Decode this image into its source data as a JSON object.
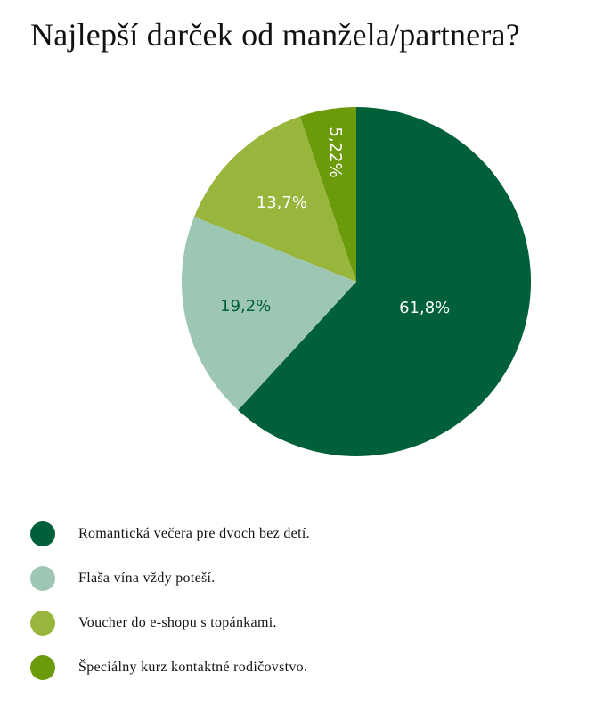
{
  "chart_data": {
    "type": "pie",
    "title": "Najlepší darček od manžela/partnera?",
    "categories": [
      "Romantická večera pre dvoch bez detí.",
      "Flaša vína vždy poteší.",
      "Voucher do e-shopu s topánkami.",
      "Špeciálny kurz kontaktné rodičovstvo."
    ],
    "values": [
      61.8,
      19.2,
      13.7,
      5.22
    ],
    "labels": [
      "61,8%",
      "19,2%",
      "13,7%",
      "5,22%"
    ],
    "colors": [
      "#00603a",
      "#9dc6b3",
      "#98b53c",
      "#6b9a0b"
    ],
    "label_colors": [
      "#ffffff",
      "#00603a",
      "#ffffff",
      "#ffffff"
    ],
    "legend_position": "bottom-left"
  }
}
